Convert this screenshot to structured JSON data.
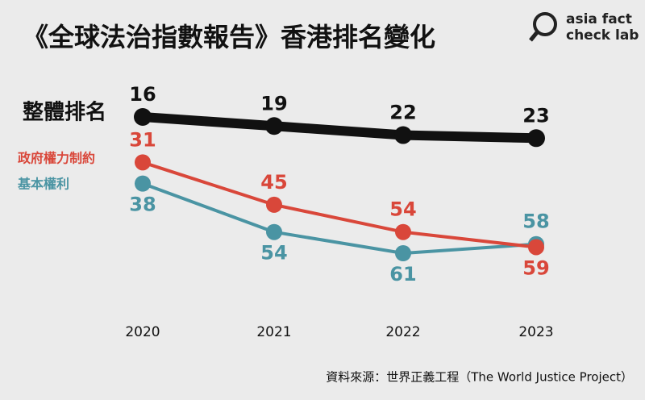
{
  "chart_data": {
    "type": "line",
    "title": "《全球法治指數報告》香港排名變化",
    "source": "資料來源：世界正義工程（The World Justice Project）",
    "logo": [
      "asia fact",
      "check lab"
    ],
    "categories": [
      "2020",
      "2021",
      "2022",
      "2023"
    ],
    "series": [
      {
        "name": "整體排名",
        "color": "#111111",
        "values": [
          16,
          19,
          22,
          23
        ]
      },
      {
        "name": "政府權力制約",
        "color": "#d9473a",
        "values": [
          31,
          45,
          54,
          59
        ]
      },
      {
        "name": "基本權利",
        "color": "#4a94a3",
        "values": [
          38,
          54,
          61,
          58
        ]
      }
    ]
  }
}
